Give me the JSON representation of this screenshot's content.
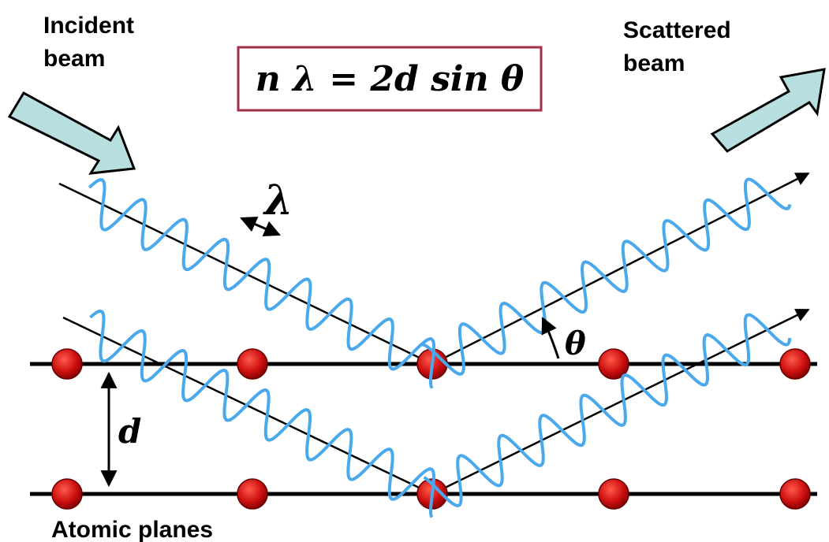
{
  "incident_beam": {
    "line1": "Incident",
    "line2": "beam"
  },
  "scattered_beam": {
    "line1": "Scattered",
    "line2": "beam"
  },
  "equation": "n λ = 2d sin θ",
  "wavelength_symbol": "λ",
  "angle_symbol": "θ",
  "spacing_symbol": "d",
  "planes_label": "Atomic planes"
}
